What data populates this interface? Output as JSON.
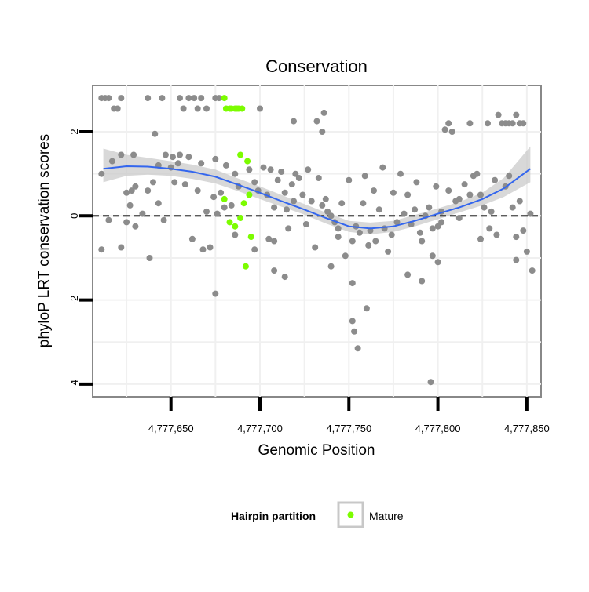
{
  "chart_data": {
    "type": "scatter",
    "title": "Conservation",
    "xlabel": "Genomic Position",
    "ylabel": "phyloP LRT conservation scores",
    "xlim": [
      4777606,
      4777858
    ],
    "ylim": [
      -4.3,
      3.1
    ],
    "x_ticks": [
      4777650,
      4777700,
      4777750,
      4777800,
      4777850
    ],
    "x_tick_labels": [
      "4,777,650",
      "4,777,700",
      "4,777,750",
      "4,777,800",
      "4,777,850"
    ],
    "y_ticks": [
      -4,
      -2,
      0,
      2
    ],
    "y_tick_labels": [
      "-4",
      "-2",
      "0",
      "2"
    ],
    "grid": true,
    "reference_line": {
      "y": 0,
      "style": "dashed"
    },
    "legend": {
      "title": "Hairpin partition",
      "placement": "bottom",
      "entries": [
        {
          "label": "Mature",
          "color": "#7cfc00"
        }
      ]
    },
    "colors": {
      "other": "#8c8c8c",
      "mature": "#7cfc00",
      "smooth": "#3366ee",
      "band": "#c8c8c8",
      "panel_border": "#888888",
      "grid": "#f0f0f0"
    },
    "series": [
      {
        "name": "",
        "color": "#8c8c8c",
        "points": [
          [
            4777611,
            2.8
          ],
          [
            4777613,
            2.8
          ],
          [
            4777615,
            2.8
          ],
          [
            4777618,
            2.55
          ],
          [
            4777620,
            2.55
          ],
          [
            4777622,
            2.8
          ],
          [
            4777637,
            2.8
          ],
          [
            4777645,
            2.8
          ],
          [
            4777655,
            2.8
          ],
          [
            4777657,
            2.55
          ],
          [
            4777660,
            2.8
          ],
          [
            4777663,
            2.8
          ],
          [
            4777665,
            2.55
          ],
          [
            4777667,
            2.8
          ],
          [
            4777670,
            2.55
          ],
          [
            4777675,
            2.8
          ],
          [
            4777677,
            2.8
          ],
          [
            4777700,
            2.55
          ],
          [
            4777719,
            2.25
          ],
          [
            4777732,
            2.25
          ],
          [
            4777736,
            2.45
          ],
          [
            4777735,
            2.0
          ],
          [
            4777641,
            1.95
          ],
          [
            4777629,
            1.45
          ],
          [
            4777643,
            1.2
          ],
          [
            4777647,
            1.45
          ],
          [
            4777651,
            1.4
          ],
          [
            4777655,
            1.45
          ],
          [
            4777660,
            1.4
          ],
          [
            4777667,
            1.25
          ],
          [
            4777675,
            1.35
          ],
          [
            4777681,
            1.2
          ],
          [
            4777611,
            1.0
          ],
          [
            4777617,
            1.3
          ],
          [
            4777615,
            -0.1
          ],
          [
            4777622,
            1.45
          ],
          [
            4777625,
            0.55
          ],
          [
            4777628,
            0.6
          ],
          [
            4777630,
            0.7
          ],
          [
            4777627,
            0.25
          ],
          [
            4777630,
            -0.25
          ],
          [
            4777634,
            0.05
          ],
          [
            4777637,
            0.6
          ],
          [
            4777640,
            0.8
          ],
          [
            4777643,
            0.3
          ],
          [
            4777646,
            -0.1
          ],
          [
            4777650,
            1.15
          ],
          [
            4777652,
            0.8
          ],
          [
            4777654,
            1.25
          ],
          [
            4777658,
            0.75
          ],
          [
            4777662,
            -0.55
          ],
          [
            4777665,
            0.6
          ],
          [
            4777668,
            -0.8
          ],
          [
            4777670,
            0.1
          ],
          [
            4777672,
            -0.75
          ],
          [
            4777674,
            0.45
          ],
          [
            4777676,
            0.05
          ],
          [
            4777678,
            0.55
          ],
          [
            4777680,
            0.2
          ],
          [
            4777684,
            0.25
          ],
          [
            4777686,
            -0.45
          ],
          [
            4777675,
            -1.85
          ],
          [
            4777638,
            -1.0
          ],
          [
            4777625,
            -0.15
          ],
          [
            4777611,
            -0.8
          ],
          [
            4777622,
            -0.75
          ],
          [
            4777686,
            1.0
          ],
          [
            4777688,
            0.7
          ],
          [
            4777694,
            1.1
          ],
          [
            4777697,
            0.8
          ],
          [
            4777699,
            0.6
          ],
          [
            4777702,
            1.15
          ],
          [
            4777704,
            0.5
          ],
          [
            4777706,
            1.1
          ],
          [
            4777708,
            0.2
          ],
          [
            4777708,
            -0.6
          ],
          [
            4777710,
            0.85
          ],
          [
            4777712,
            1.05
          ],
          [
            4777714,
            0.55
          ],
          [
            4777715,
            0.15
          ],
          [
            4777716,
            -0.3
          ],
          [
            4777718,
            0.75
          ],
          [
            4777719,
            0.35
          ],
          [
            4777720,
            1.0
          ],
          [
            4777722,
            0.9
          ],
          [
            4777724,
            0.5
          ],
          [
            4777726,
            -0.2
          ],
          [
            4777727,
            1.1
          ],
          [
            4777729,
            0.35
          ],
          [
            4777731,
            -0.75
          ],
          [
            4777733,
            0.9
          ],
          [
            4777735,
            0.25
          ],
          [
            4777737,
            0.4
          ],
          [
            4777738,
            0.1
          ],
          [
            4777740,
            0.0
          ],
          [
            4777742,
            -0.15
          ],
          [
            4777744,
            -0.5
          ],
          [
            4777746,
            0.3
          ],
          [
            4777697,
            -0.8
          ],
          [
            4777705,
            -0.55
          ],
          [
            4777708,
            -1.3
          ],
          [
            4777714,
            -1.45
          ],
          [
            4777740,
            -1.2
          ],
          [
            4777744,
            -0.3
          ],
          [
            4777748,
            -0.95
          ],
          [
            4777750,
            0.85
          ],
          [
            4777752,
            -0.6
          ],
          [
            4777754,
            -0.25
          ],
          [
            4777756,
            -0.4
          ],
          [
            4777758,
            0.3
          ],
          [
            4777759,
            0.95
          ],
          [
            4777761,
            -0.7
          ],
          [
            4777762,
            -0.35
          ],
          [
            4777764,
            0.6
          ],
          [
            4777765,
            -0.6
          ],
          [
            4777767,
            0.15
          ],
          [
            4777769,
            1.15
          ],
          [
            4777770,
            -0.3
          ],
          [
            4777772,
            -0.85
          ],
          [
            4777774,
            -0.45
          ],
          [
            4777775,
            0.55
          ],
          [
            4777777,
            -0.15
          ],
          [
            4777779,
            1.0
          ],
          [
            4777781,
            0.05
          ],
          [
            4777783,
            0.5
          ],
          [
            4777785,
            -0.2
          ],
          [
            4777787,
            0.15
          ],
          [
            4777788,
            0.8
          ],
          [
            4777790,
            -0.4
          ],
          [
            4777791,
            -0.6
          ],
          [
            4777793,
            0.0
          ],
          [
            4777795,
            0.2
          ],
          [
            4777797,
            -0.3
          ],
          [
            4777799,
            0.7
          ],
          [
            4777752,
            -1.6
          ],
          [
            4777752,
            -2.5
          ],
          [
            4777753,
            -2.75
          ],
          [
            4777755,
            -3.15
          ],
          [
            4777760,
            -2.2
          ],
          [
            4777783,
            -1.4
          ],
          [
            4777791,
            -1.55
          ],
          [
            4777796,
            -3.95
          ],
          [
            4777797,
            -0.95
          ],
          [
            4777800,
            -1.1
          ],
          [
            4777800,
            -0.25
          ],
          [
            4777802,
            0.1
          ],
          [
            4777804,
            2.05
          ],
          [
            4777806,
            2.2
          ],
          [
            4777808,
            2.0
          ],
          [
            4777812,
            0.4
          ],
          [
            4777815,
            0.75
          ],
          [
            4777818,
            2.2
          ],
          [
            4777820,
            0.95
          ],
          [
            4777822,
            1.0
          ],
          [
            4777824,
            0.5
          ],
          [
            4777826,
            0.2
          ],
          [
            4777828,
            2.2
          ],
          [
            4777830,
            0.1
          ],
          [
            4777832,
            0.85
          ],
          [
            4777834,
            2.4
          ],
          [
            4777836,
            2.2
          ],
          [
            4777838,
            2.2
          ],
          [
            4777840,
            2.2
          ],
          [
            4777842,
            2.2
          ],
          [
            4777844,
            2.4
          ],
          [
            4777846,
            2.2
          ],
          [
            4777848,
            2.2
          ],
          [
            4777838,
            0.7
          ],
          [
            4777840,
            0.95
          ],
          [
            4777842,
            0.2
          ],
          [
            4777844,
            -0.5
          ],
          [
            4777846,
            0.35
          ],
          [
            4777848,
            -0.35
          ],
          [
            4777850,
            -0.85
          ],
          [
            4777852,
            0.05
          ],
          [
            4777853,
            -1.3
          ],
          [
            4777844,
            -1.05
          ],
          [
            4777833,
            -0.45
          ],
          [
            4777829,
            -0.3
          ],
          [
            4777824,
            -0.55
          ],
          [
            4777818,
            0.5
          ],
          [
            4777810,
            0.35
          ],
          [
            4777806,
            0.6
          ],
          [
            4777802,
            -0.15
          ],
          [
            4777812,
            -0.05
          ]
        ]
      },
      {
        "name": "Mature",
        "color": "#7cfc00",
        "points": [
          [
            4777680,
            2.8
          ],
          [
            4777681,
            2.55
          ],
          [
            4777683,
            2.55
          ],
          [
            4777684,
            2.55
          ],
          [
            4777686,
            2.55
          ],
          [
            4777687,
            2.55
          ],
          [
            4777688,
            2.55
          ],
          [
            4777690,
            2.55
          ],
          [
            4777689,
            1.45
          ],
          [
            4777693,
            1.3
          ],
          [
            4777691,
            0.3
          ],
          [
            4777694,
            0.5
          ],
          [
            4777680,
            0.4
          ],
          [
            4777683,
            -0.15
          ],
          [
            4777686,
            -0.25
          ],
          [
            4777689,
            -0.05
          ],
          [
            4777695,
            -0.5
          ],
          [
            4777692,
            -1.2
          ]
        ]
      }
    ],
    "smooth": {
      "method": "loess",
      "x": [
        4777612,
        4777625,
        4777637,
        4777650,
        4777662,
        4777675,
        4777687,
        4777700,
        4777712,
        4777725,
        4777737,
        4777750,
        4777762,
        4777775,
        4777787,
        4777800,
        4777812,
        4777825,
        4777837,
        4777852
      ],
      "y": [
        1.12,
        1.18,
        1.17,
        1.12,
        1.05,
        0.93,
        0.75,
        0.55,
        0.35,
        0.15,
        -0.05,
        -0.25,
        -0.3,
        -0.25,
        -0.12,
        0.05,
        0.2,
        0.4,
        0.65,
        1.12
      ],
      "lower": [
        0.8,
        0.95,
        0.98,
        0.95,
        0.88,
        0.77,
        0.6,
        0.4,
        0.22,
        0.03,
        -0.18,
        -0.38,
        -0.44,
        -0.38,
        -0.25,
        -0.08,
        0.08,
        0.25,
        0.45,
        0.8
      ],
      "upper": [
        1.6,
        1.45,
        1.38,
        1.3,
        1.22,
        1.1,
        0.9,
        0.7,
        0.5,
        0.28,
        0.08,
        -0.12,
        -0.16,
        -0.12,
        0.02,
        0.18,
        0.33,
        0.55,
        0.9,
        1.65
      ]
    }
  }
}
